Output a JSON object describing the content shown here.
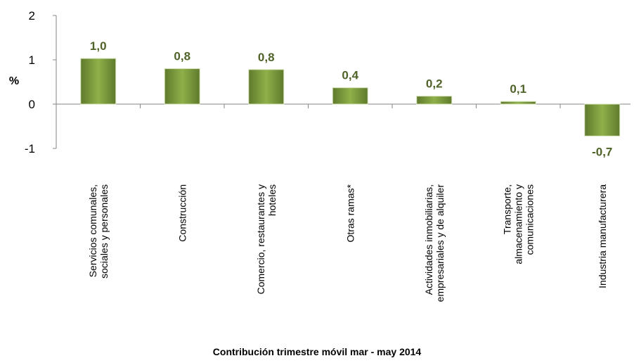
{
  "chart_data": {
    "type": "bar",
    "title": "Contribución  trimestre móvil mar - may 2014",
    "y_label": "%",
    "categories": [
      "Servicios comunales,\nsociales y personales",
      "Construcción",
      "Comercio, restaurantes y\nhoteles",
      "Otras ramas*",
      "Actividades inmobiliarias,\nempresariales y de alquiler",
      "Transporte,\nalmacenamiento y\ncomunicaciones",
      "Industria manufacturera"
    ],
    "values": [
      1.03,
      0.8,
      0.78,
      0.37,
      0.18,
      0.06,
      -0.72
    ],
    "value_labels": [
      "1,0",
      "0,8",
      "0,8",
      "0,4",
      "0,2",
      "0,1",
      "-0,7"
    ],
    "color": "#77933c",
    "ylim": [
      -1,
      2
    ],
    "yticks": [
      2,
      1,
      0,
      -1
    ]
  }
}
